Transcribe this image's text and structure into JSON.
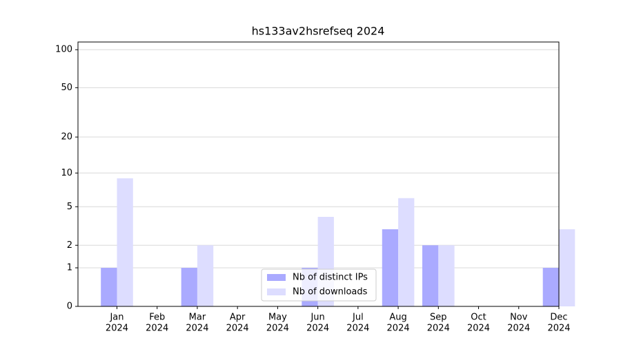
{
  "chart_data": {
    "type": "bar",
    "title": "hs133av2hsrefseq 2024",
    "categories": [
      [
        "Jan",
        "2024"
      ],
      [
        "Feb",
        "2024"
      ],
      [
        "Mar",
        "2024"
      ],
      [
        "Apr",
        "2024"
      ],
      [
        "May",
        "2024"
      ],
      [
        "Jun",
        "2024"
      ],
      [
        "Jul",
        "2024"
      ],
      [
        "Aug",
        "2024"
      ],
      [
        "Sep",
        "2024"
      ],
      [
        "Oct",
        "2024"
      ],
      [
        "Nov",
        "2024"
      ],
      [
        "Dec",
        "2024"
      ]
    ],
    "series": [
      {
        "name": "Nb of distinct IPs",
        "color": "#aaaaff",
        "values": [
          1,
          0,
          1,
          0,
          0,
          1,
          0,
          3,
          2,
          0,
          0,
          1
        ]
      },
      {
        "name": "Nb of downloads",
        "color": "#ddddff",
        "values": [
          9,
          0,
          2,
          0,
          0,
          4,
          0,
          6,
          2,
          0,
          0,
          3
        ]
      }
    ],
    "yscale": "symlog",
    "ylim": [
      0,
      115
    ],
    "yticks": [
      0,
      1,
      2,
      5,
      10,
      20,
      50,
      100
    ],
    "grid": true,
    "legend": "lower center"
  }
}
